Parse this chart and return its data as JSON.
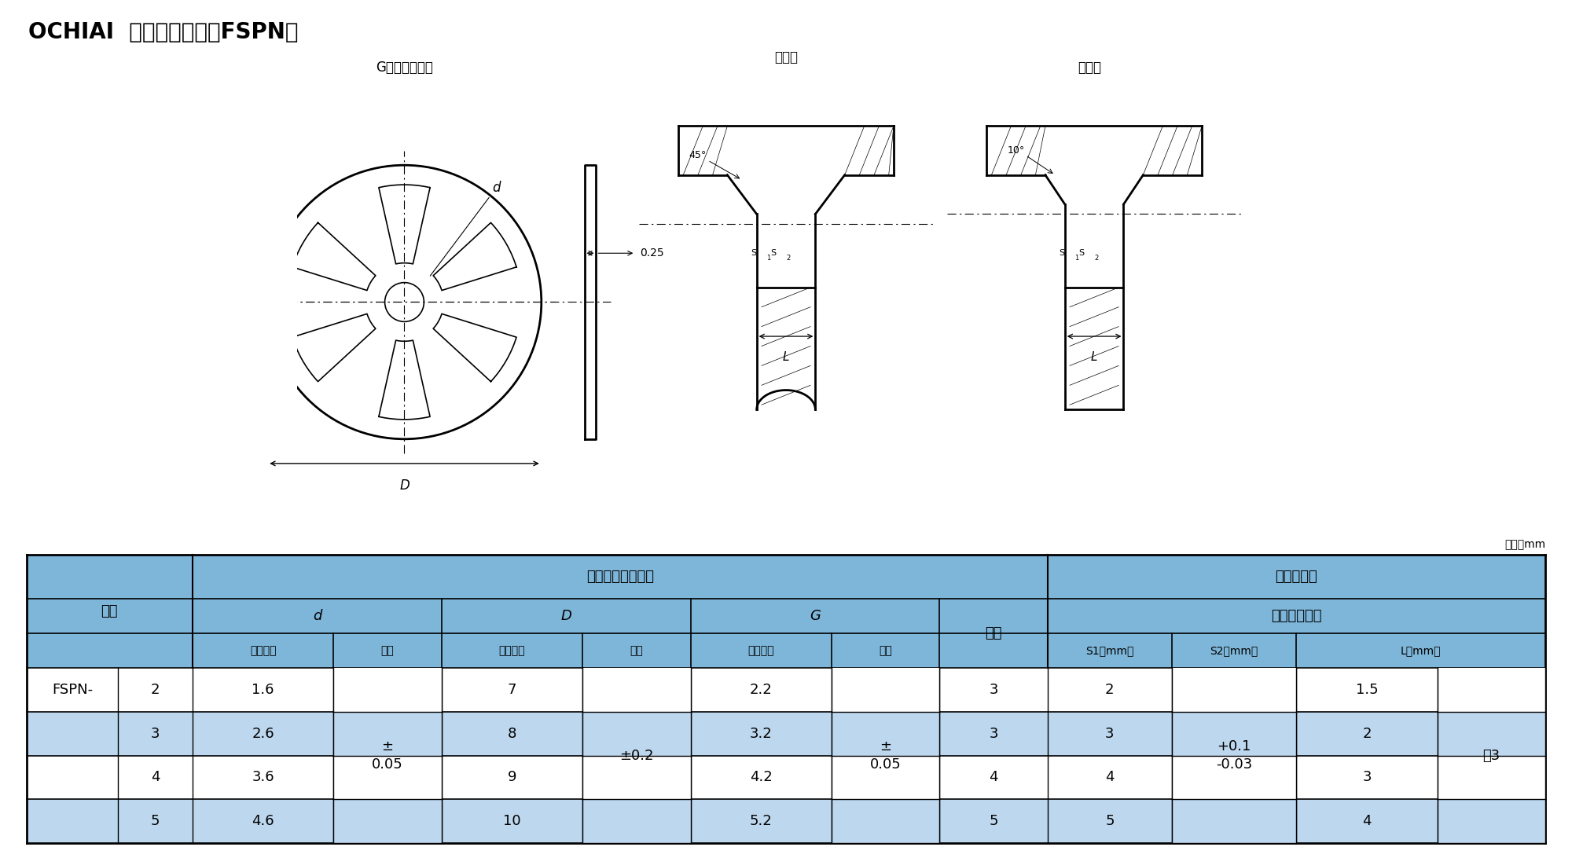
{
  "title": "OCHIAI  平形锁紧螺母（FSPN）",
  "unit_text": "单位：mm",
  "label_g": "G（导向孔径）",
  "label_metal": "金属轴",
  "label_plastic": "塑料轴",
  "header_bg": "#7EB6D9",
  "row_bg_blue": "#BDD7EE",
  "title_fontsize": 20,
  "header_fontsize": 13,
  "cell_fontsize": 13
}
